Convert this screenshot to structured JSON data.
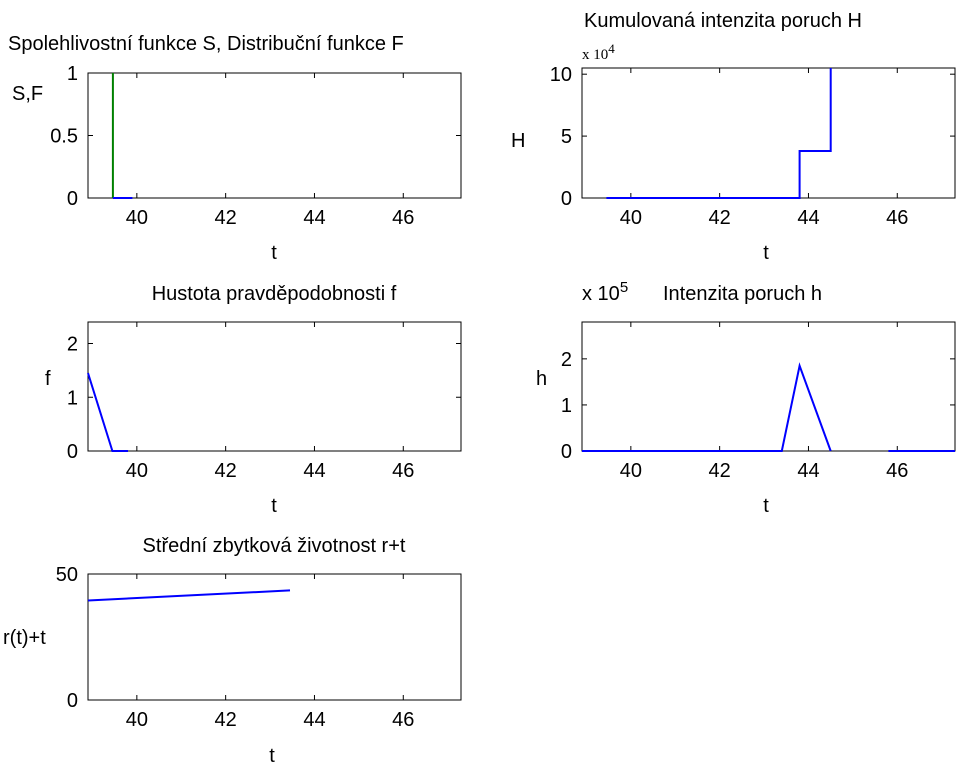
{
  "colors": {
    "blue": "#0000ff",
    "green": "#008000"
  },
  "chart_data": [
    {
      "id": "sf",
      "type": "line",
      "title": "Spolehlivostní funkce S, Distribuční funkce F",
      "xlabel": "t",
      "ylabel": "S,F",
      "xlim": [
        38.9,
        47.3
      ],
      "ylim": [
        0,
        1
      ],
      "xticks": [
        "40",
        "42",
        "44",
        "46"
      ],
      "xtick_values": [
        40,
        42,
        44,
        46
      ],
      "yticks": [
        "0",
        "0.5",
        "1"
      ],
      "ytick_values": [
        0,
        0.5,
        1
      ],
      "grid": false,
      "series": [
        {
          "color": "green",
          "x": [
            39.46,
            39.46
          ],
          "y": [
            0,
            1
          ]
        },
        {
          "color": "blue",
          "x": [
            39.46,
            39.9
          ],
          "y": [
            0,
            0
          ]
        }
      ]
    },
    {
      "id": "H",
      "type": "line",
      "title": "Kumulovaná intenzita poruch H",
      "xlabel": "t",
      "ylabel": "H",
      "exponent": "x 10",
      "exponent_power": "4",
      "xlim": [
        38.9,
        47.3
      ],
      "ylim": [
        0,
        10.5
      ],
      "xticks": [
        "40",
        "42",
        "44",
        "46"
      ],
      "xtick_values": [
        40,
        42,
        44,
        46
      ],
      "yticks": [
        "0",
        "5",
        "10"
      ],
      "ytick_values": [
        0,
        5,
        10
      ],
      "grid": false,
      "series": [
        {
          "color": "blue",
          "x": [
            39.45,
            43.8,
            43.8,
            44.5,
            44.5
          ],
          "y": [
            0,
            0,
            3.8,
            3.8,
            10.5
          ]
        }
      ]
    },
    {
      "id": "f",
      "type": "line",
      "title": "Hustota pravděpodobnosti f",
      "xlabel": "t",
      "ylabel": "f",
      "xlim": [
        38.9,
        47.3
      ],
      "ylim": [
        0,
        2.4
      ],
      "xticks": [
        "40",
        "42",
        "44",
        "46"
      ],
      "xtick_values": [
        40,
        42,
        44,
        46
      ],
      "yticks": [
        "0",
        "1",
        "2"
      ],
      "ytick_values": [
        0,
        1,
        2
      ],
      "grid": false,
      "series": [
        {
          "color": "blue",
          "x": [
            38.9,
            39.45,
            39.8
          ],
          "y": [
            1.45,
            0,
            0
          ]
        }
      ]
    },
    {
      "id": "h",
      "type": "line",
      "title": "Intenzita poruch h",
      "xlabel": "t",
      "ylabel": "h",
      "exponent": "x 10",
      "exponent_power": "5",
      "xlim": [
        38.9,
        47.3
      ],
      "ylim": [
        0,
        2.8
      ],
      "xticks": [
        "40",
        "42",
        "44",
        "46"
      ],
      "xtick_values": [
        40,
        42,
        44,
        46
      ],
      "yticks": [
        "0",
        "1",
        "2"
      ],
      "ytick_values": [
        0,
        1,
        2
      ],
      "grid": false,
      "series": [
        {
          "color": "blue",
          "x": [
            38.9,
            43.4,
            43.8,
            44.5,
            44.5
          ],
          "y": [
            0,
            0,
            1.85,
            0,
            0
          ]
        },
        {
          "color": "blue",
          "x": [
            45.8,
            47.3
          ],
          "y": [
            0,
            0
          ]
        }
      ]
    },
    {
      "id": "r",
      "type": "line",
      "title": "Střední zbytková životnost r+t",
      "xlabel": "t",
      "ylabel": "r(t)+t",
      "xlim": [
        38.9,
        47.3
      ],
      "ylim": [
        0,
        50
      ],
      "xticks": [
        "40",
        "42",
        "44",
        "46"
      ],
      "xtick_values": [
        40,
        42,
        44,
        46
      ],
      "yticks": [
        "0",
        "50"
      ],
      "ytick_values": [
        0,
        50
      ],
      "grid": false,
      "series": [
        {
          "color": "blue",
          "x": [
            38.9,
            43.45
          ],
          "y": [
            39.5,
            43.5
          ]
        }
      ]
    }
  ]
}
